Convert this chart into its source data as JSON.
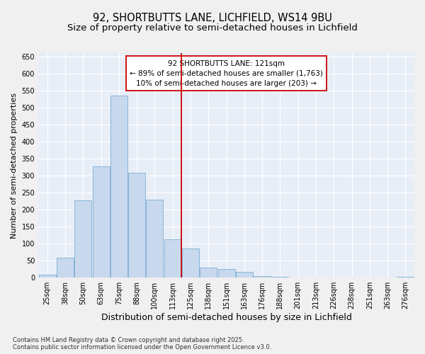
{
  "title": "92, SHORTBUTTS LANE, LICHFIELD, WS14 9BU",
  "subtitle": "Size of property relative to semi-detached houses in Lichfield",
  "xlabel": "Distribution of semi-detached houses by size in Lichfield",
  "ylabel": "Number of semi-detached properties",
  "categories": [
    "25sqm",
    "38sqm",
    "50sqm",
    "63sqm",
    "75sqm",
    "88sqm",
    "100sqm",
    "113sqm",
    "125sqm",
    "138sqm",
    "151sqm",
    "163sqm",
    "176sqm",
    "188sqm",
    "201sqm",
    "213sqm",
    "226sqm",
    "238sqm",
    "251sqm",
    "263sqm",
    "276sqm"
  ],
  "values": [
    8,
    58,
    228,
    328,
    535,
    308,
    230,
    113,
    85,
    30,
    25,
    18,
    5,
    2,
    1,
    0,
    1,
    0,
    0,
    0,
    3
  ],
  "bar_color": "#c8d9ee",
  "bar_edge_color": "#7aadd4",
  "vline_x_idx": 7.5,
  "vline_color": "#cc0000",
  "annotation_line1": "92 SHORTBUTTS LANE: 121sqm",
  "annotation_line2": "← 89% of semi-detached houses are smaller (1,763)",
  "annotation_line3": "10% of semi-detached houses are larger (203) →",
  "annotation_box_color": "#ffffff",
  "annotation_box_edge": "#cc0000",
  "ylim": [
    0,
    660
  ],
  "yticks": [
    0,
    50,
    100,
    150,
    200,
    250,
    300,
    350,
    400,
    450,
    500,
    550,
    600,
    650
  ],
  "plot_bg": "#e8eef7",
  "fig_bg": "#f0f0f0",
  "footer_text": "Contains HM Land Registry data © Crown copyright and database right 2025.\nContains public sector information licensed under the Open Government Licence v3.0.",
  "title_fontsize": 10.5,
  "subtitle_fontsize": 9.5,
  "xlabel_fontsize": 9,
  "ylabel_fontsize": 8,
  "tick_fontsize": 7,
  "annotation_fontsize": 7.5,
  "footer_fontsize": 6
}
